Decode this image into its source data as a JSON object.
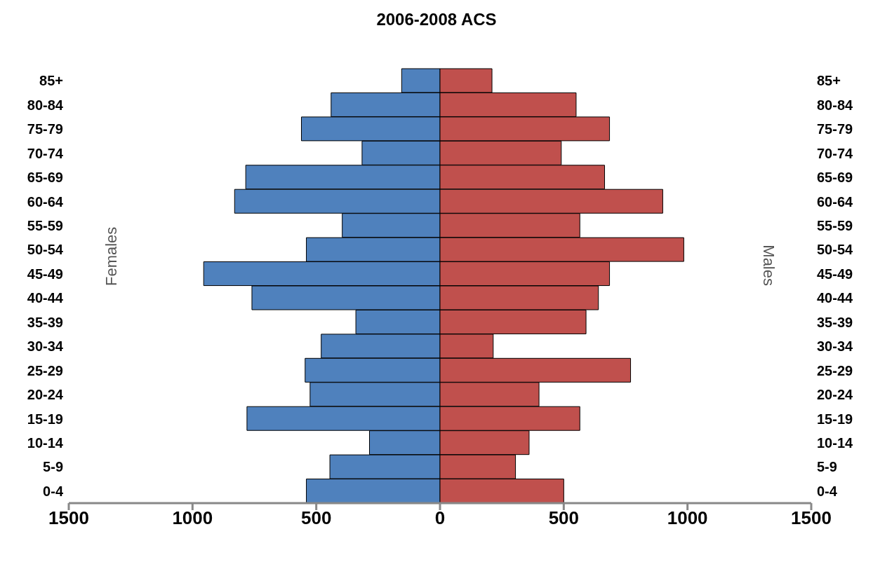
{
  "chart_data": {
    "type": "bar",
    "orientation": "horizontal",
    "stacked": true,
    "title": "2006-2008 ACS",
    "ylabel": "Females",
    "y2label": "Males",
    "categories": [
      "85+",
      "80-84",
      "75-79",
      "70-74",
      "65-69",
      "60-64",
      "55-59",
      "50-54",
      "45-49",
      "40-44",
      "35-39",
      "30-34",
      "25-29",
      "20-24",
      "15-19",
      "10-14",
      "5-9",
      "0-4"
    ],
    "series": [
      {
        "color": "#4f81bd",
        "values": [
          -155,
          -440,
          -560,
          -315,
          -785,
          -830,
          -395,
          -540,
          -955,
          -760,
          -340,
          -480,
          -545,
          -525,
          -780,
          -285,
          -445,
          -540
        ]
      },
      {
        "color": "#c0504d",
        "values": [
          210,
          550,
          685,
          490,
          665,
          900,
          565,
          985,
          685,
          640,
          590,
          215,
          770,
          400,
          565,
          360,
          305,
          500
        ]
      }
    ],
    "xlim": [
      -1500,
      1500
    ],
    "xticks": [
      {
        "value": -1500,
        "label": "1500"
      },
      {
        "value": -1000,
        "label": "1000"
      },
      {
        "value": -500,
        "label": "500"
      },
      0,
      500,
      1000,
      1500
    ]
  }
}
